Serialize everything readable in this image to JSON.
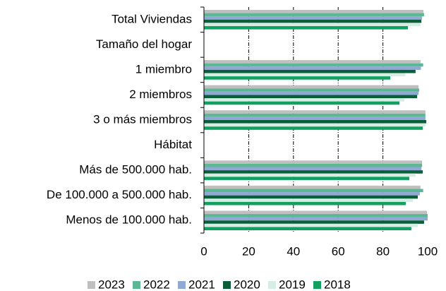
{
  "chart_data": {
    "type": "bar",
    "orientation": "horizontal",
    "categories": [
      "Total Viviendas",
      "Tamaño del hogar",
      "1 miembro ",
      "2 miembros",
      "3 o más miembros",
      "Hábitat",
      "Más de 500.000 hab.",
      "De 100.000 a 500.000 hab.",
      "Menos de 100.000 hab."
    ],
    "series": [
      {
        "name": "2023",
        "color": "#bfbfbf",
        "values": [
          98.1,
          null,
          96.8,
          95.9,
          99,
          null,
          97.5,
          96.8,
          99.7
        ]
      },
      {
        "name": "2022",
        "color": "#5cb894",
        "values": [
          98.4,
          null,
          98,
          96.2,
          99,
          null,
          97.5,
          98,
          100
        ]
      },
      {
        "name": "2021",
        "color": "#8fa8d4",
        "values": [
          97.5,
          null,
          97,
          95.9,
          99,
          null,
          97.2,
          96.5,
          100
        ]
      },
      {
        "name": "2020",
        "color": "#0b5e3a",
        "values": [
          97.2,
          null,
          94.6,
          95.3,
          99.4,
          null,
          97.8,
          95.6,
          98.4
        ]
      },
      {
        "name": "2019",
        "color": "#d5ede2",
        "values": [
          96.8,
          null,
          90,
          89.6,
          99,
          null,
          94.6,
          93.4,
          95.6
        ]
      },
      {
        "name": "2018",
        "color": "#12a060",
        "values": [
          91.2,
          null,
          83.3,
          87.4,
          97.8,
          null,
          91.8,
          90.2,
          92.7
        ]
      }
    ],
    "xlim": [
      0,
      100
    ],
    "xticks": [
      0,
      20,
      40,
      60,
      80,
      100
    ],
    "grid": true,
    "legend": "bottom"
  }
}
